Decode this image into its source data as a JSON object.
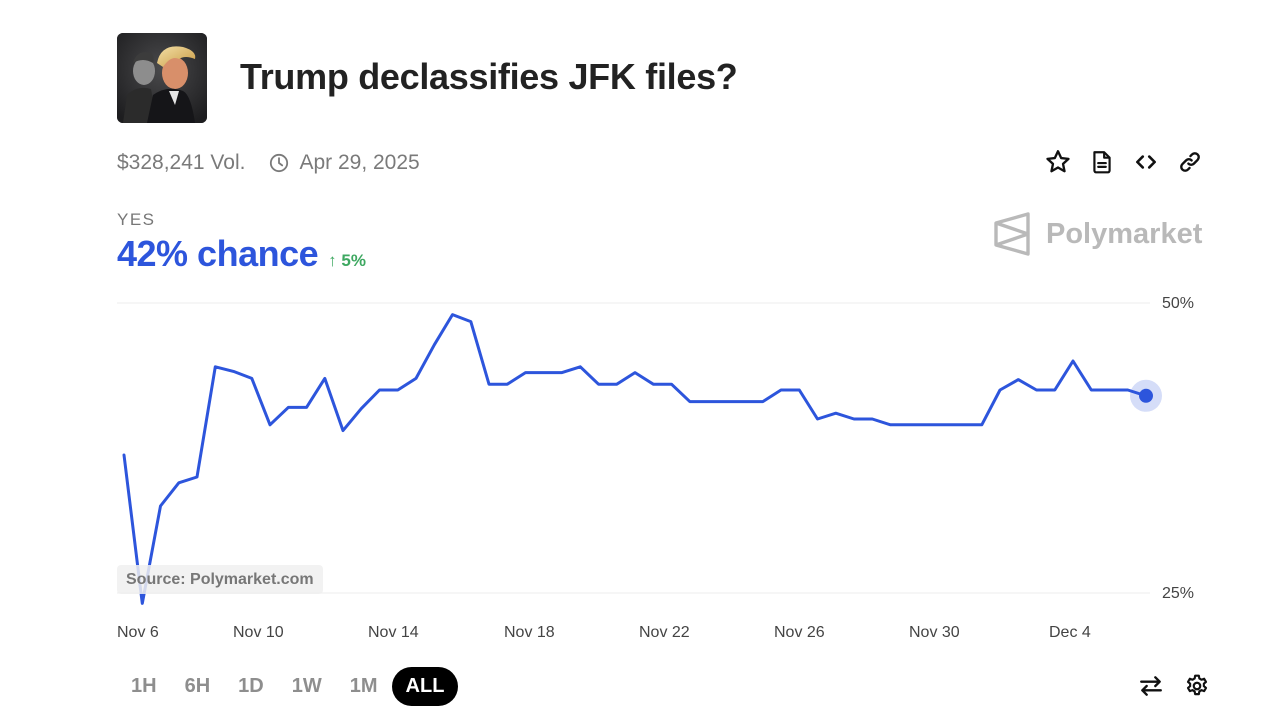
{
  "header": {
    "title": "Trump declassifies JFK files?",
    "thumbnail_alt": "JFK and Trump portrait"
  },
  "meta": {
    "volume": "$328,241 Vol.",
    "end_date": "Apr 29, 2025",
    "clock_icon": "clock-icon"
  },
  "actions": [
    {
      "name": "bookmark-button",
      "icon": "star-icon"
    },
    {
      "name": "details-button",
      "icon": "document-icon"
    },
    {
      "name": "embed-button",
      "icon": "code-icon"
    },
    {
      "name": "copy-link-button",
      "icon": "link-icon"
    }
  ],
  "outcome": {
    "label": "YES",
    "chance": "42% chance",
    "delta": "5%",
    "delta_direction": "up",
    "color": "#2d55dc",
    "delta_color": "#3ea861"
  },
  "brand": {
    "name": "Polymarket",
    "color": "#b9b9b9"
  },
  "source_label": "Source: Polymarket.com",
  "time_ranges": [
    {
      "label": "1H",
      "active": false
    },
    {
      "label": "6H",
      "active": false
    },
    {
      "label": "1D",
      "active": false
    },
    {
      "label": "1W",
      "active": false
    },
    {
      "label": "1M",
      "active": false
    },
    {
      "label": "ALL",
      "active": true
    }
  ],
  "bottom_icons": [
    {
      "name": "swap-outcome-button",
      "icon": "swap-arrows-icon"
    },
    {
      "name": "chart-settings-button",
      "icon": "gear-icon"
    }
  ],
  "chart_data": {
    "type": "line",
    "title": "Trump declassifies JFK files?",
    "series": [
      {
        "name": "YES",
        "color": "#2d55dc",
        "values": [
          36.9,
          24.1,
          32.5,
          34.5,
          35.0,
          44.5,
          44.1,
          43.5,
          39.5,
          41.0,
          41.0,
          43.5,
          39.0,
          40.9,
          42.5,
          42.5,
          43.5,
          46.4,
          49.0,
          48.4,
          43.0,
          43.0,
          44.0,
          44.0,
          44.0,
          44.5,
          43.0,
          43.0,
          44.0,
          43.0,
          43.0,
          41.5,
          41.5,
          41.5,
          41.5,
          41.5,
          42.5,
          42.5,
          40.0,
          40.5,
          40.0,
          40.0,
          39.5,
          39.5,
          39.5,
          39.5,
          39.5,
          39.5,
          42.5,
          43.4,
          42.5,
          42.5,
          45.0,
          42.5,
          42.5,
          42.5,
          42.0
        ]
      }
    ],
    "x_tick_labels": [
      "Nov 6",
      "Nov 10",
      "Nov 14",
      "Nov 18",
      "Nov 22",
      "Nov 26",
      "Nov 30",
      "Dec 4"
    ],
    "y_tick_labels": [
      "50%",
      "25%"
    ],
    "ylim": [
      25,
      50
    ],
    "grid": "horizontal",
    "xlabel": "",
    "ylabel": "",
    "legend": "none",
    "current_value": 42
  }
}
